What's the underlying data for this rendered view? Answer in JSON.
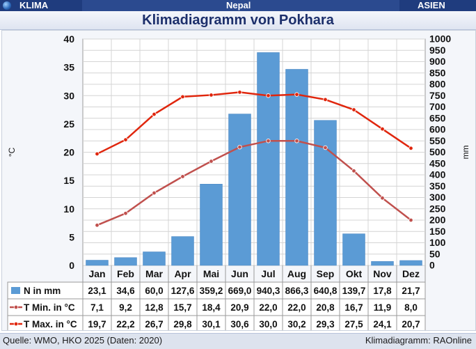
{
  "header": {
    "left_label": "KLIMA",
    "center_label": "Nepal",
    "right_label": "ASIEN",
    "globe_icon": "globe-icon"
  },
  "title": "Klimadiagramm von Pokhara",
  "footer": {
    "source": "Quelle: WMO, HKO 2025 (Daten: 2020)",
    "credit": "Klimadiagramm: RAOnline"
  },
  "colors": {
    "bar": "#5b9bd5",
    "tmin": "#c0504d",
    "tmax": "#e0260d"
  },
  "chart_data": {
    "type": "bar-line",
    "categories": [
      "Jan",
      "Feb",
      "Mar",
      "Apr",
      "Mai",
      "Jun",
      "Jul",
      "Aug",
      "Sep",
      "Okt",
      "Nov",
      "Dez"
    ],
    "left_axis": {
      "label": "°C",
      "min": 0,
      "max": 40,
      "step": 5
    },
    "right_axis": {
      "label": "mm",
      "min": 0,
      "max": 1000,
      "step": 50
    },
    "series": [
      {
        "name": "N in mm",
        "type": "bar",
        "axis": "right",
        "values": [
          23.1,
          34.6,
          60.0,
          127.6,
          359.2,
          669.0,
          940.3,
          866.3,
          640.8,
          139.7,
          17.8,
          21.7
        ],
        "labels": [
          "23,1",
          "34,6",
          "60,0",
          "127,6",
          "359,2",
          "669,0",
          "940,3",
          "866,3",
          "640,8",
          "139,7",
          "17,8",
          "21,7"
        ]
      },
      {
        "name": "T Min. in °C",
        "type": "line",
        "axis": "left",
        "values": [
          7.1,
          9.2,
          12.8,
          15.7,
          18.4,
          20.9,
          22.0,
          22.0,
          20.8,
          16.7,
          11.9,
          8.0
        ],
        "labels": [
          "7,1",
          "9,2",
          "12,8",
          "15,7",
          "18,4",
          "20,9",
          "22,0",
          "22,0",
          "20,8",
          "16,7",
          "11,9",
          "8,0"
        ]
      },
      {
        "name": "T Max. in °C",
        "type": "line",
        "axis": "left",
        "values": [
          19.7,
          22.2,
          26.7,
          29.8,
          30.1,
          30.6,
          30.0,
          30.2,
          29.3,
          27.5,
          24.1,
          20.7
        ],
        "labels": [
          "19,7",
          "22,2",
          "26,7",
          "29,8",
          "30,1",
          "30,6",
          "30,0",
          "30,2",
          "29,3",
          "27,5",
          "24,1",
          "20,7"
        ]
      }
    ],
    "grid": true,
    "legend": "table-below"
  }
}
